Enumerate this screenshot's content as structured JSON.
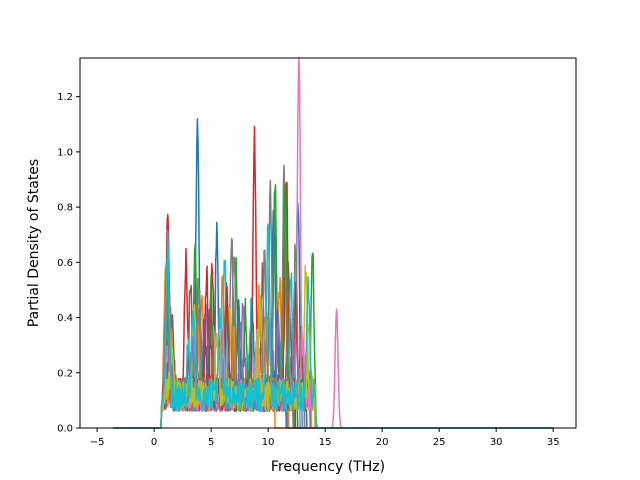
{
  "chart_data": {
    "type": "line",
    "title": "",
    "xlabel": "Frequency (THz)",
    "ylabel": "Partial Density of States",
    "xlim": [
      -6.5,
      37
    ],
    "ylim": [
      0,
      1.34
    ],
    "xticks": [
      -5,
      0,
      5,
      10,
      15,
      20,
      25,
      30,
      35
    ],
    "yticks": [
      0.0,
      0.2,
      0.4,
      0.6,
      0.8,
      1.0,
      1.2
    ],
    "xtick_labels": [
      "−5",
      "0",
      "5",
      "10",
      "15",
      "20",
      "25",
      "30",
      "35"
    ],
    "ytick_labels": [
      "0.0",
      "0.2",
      "0.4",
      "0.6",
      "0.8",
      "1.0",
      "1.2"
    ],
    "grid": false,
    "legend": "none",
    "x_range_of_data": [
      -3.6,
      35
    ],
    "series_count": 20,
    "series": [
      {
        "color": "#1f77b4",
        "peaks": [
          [
            1.2,
            0.62
          ],
          [
            3.8,
            1.0
          ],
          [
            5.5,
            0.58
          ],
          [
            10.5,
            0.7
          ],
          [
            12.6,
            0.75
          ]
        ]
      },
      {
        "color": "#ff7f0e",
        "peaks": [
          [
            1.0,
            0.45
          ],
          [
            4.2,
            0.38
          ],
          [
            6.0,
            0.42
          ],
          [
            9.2,
            0.36
          ],
          [
            11.0,
            0.4
          ]
        ]
      },
      {
        "color": "#2ca02c",
        "peaks": [
          [
            1.3,
            0.35
          ],
          [
            3.6,
            0.5
          ],
          [
            7.2,
            0.44
          ],
          [
            10.6,
            0.76
          ],
          [
            13.9,
            0.51
          ]
        ]
      },
      {
        "color": "#d62728",
        "peaks": [
          [
            1.2,
            0.68
          ],
          [
            2.8,
            0.5
          ],
          [
            5.1,
            0.48
          ],
          [
            8.8,
            0.97
          ],
          [
            11.6,
            0.8
          ]
        ]
      },
      {
        "color": "#9467bd",
        "peaks": [
          [
            1.5,
            0.3
          ],
          [
            4.5,
            0.34
          ],
          [
            7.8,
            0.3
          ],
          [
            10.2,
            0.3
          ],
          [
            12.2,
            0.32
          ]
        ]
      },
      {
        "color": "#8c564b",
        "peaks": [
          [
            1.6,
            0.28
          ],
          [
            3.2,
            0.42
          ],
          [
            6.3,
            0.38
          ],
          [
            9.5,
            0.42
          ],
          [
            11.8,
            0.48
          ]
        ]
      },
      {
        "color": "#e377c2",
        "peaks": [
          [
            1.1,
            0.2
          ],
          [
            5.2,
            0.3
          ],
          [
            12.7,
            1.28
          ],
          [
            16.0,
            0.43
          ]
        ]
      },
      {
        "color": "#7f7f7f",
        "peaks": [
          [
            1.4,
            0.3
          ],
          [
            4.0,
            0.36
          ],
          [
            6.8,
            0.58
          ],
          [
            10.2,
            0.72
          ],
          [
            11.4,
            0.81
          ]
        ]
      },
      {
        "color": "#bcbd22",
        "peaks": [
          [
            1.2,
            0.26
          ],
          [
            3.5,
            0.3
          ],
          [
            6.6,
            0.32
          ],
          [
            9.3,
            0.34
          ],
          [
            13.3,
            0.45
          ]
        ]
      },
      {
        "color": "#17becf",
        "peaks": [
          [
            1.0,
            0.28
          ],
          [
            3.0,
            0.2
          ],
          [
            6.2,
            0.47
          ],
          [
            8.5,
            0.3
          ],
          [
            12.0,
            0.42
          ]
        ]
      },
      {
        "color": "#1f77b4",
        "peaks": [
          [
            1.3,
            0.22
          ],
          [
            4.4,
            0.25
          ],
          [
            7.4,
            0.3
          ],
          [
            10.8,
            0.3
          ]
        ]
      },
      {
        "color": "#ff7f0e",
        "peaks": [
          [
            1.5,
            0.2
          ],
          [
            3.8,
            0.28
          ],
          [
            7.0,
            0.24
          ],
          [
            9.8,
            0.3
          ]
        ]
      },
      {
        "color": "#2ca02c",
        "peaks": [
          [
            1.2,
            0.3
          ],
          [
            5.0,
            0.4
          ],
          [
            8.0,
            0.3
          ],
          [
            11.5,
            0.76
          ]
        ]
      },
      {
        "color": "#d62728",
        "peaks": [
          [
            1.1,
            0.4
          ],
          [
            4.6,
            0.45
          ],
          [
            6.4,
            0.36
          ],
          [
            12.4,
            0.35
          ]
        ]
      },
      {
        "color": "#9467bd",
        "peaks": [
          [
            1.4,
            0.18
          ],
          [
            3.3,
            0.22
          ],
          [
            7.6,
            0.22
          ],
          [
            10.9,
            0.26
          ]
        ]
      },
      {
        "color": "#8c564b",
        "peaks": [
          [
            1.3,
            0.2
          ],
          [
            4.9,
            0.3
          ],
          [
            8.6,
            0.3
          ],
          [
            12.9,
            0.2
          ]
        ]
      },
      {
        "color": "#e377c2",
        "peaks": [
          [
            1.2,
            0.16
          ],
          [
            6.0,
            0.2
          ],
          [
            9.0,
            0.2
          ],
          [
            13.0,
            0.2
          ]
        ]
      },
      {
        "color": "#7f7f7f",
        "peaks": [
          [
            1.1,
            0.44
          ],
          [
            3.9,
            0.4
          ],
          [
            7.0,
            0.5
          ],
          [
            9.7,
            0.5
          ],
          [
            12.4,
            0.56
          ]
        ]
      },
      {
        "color": "#bcbd22",
        "peaks": [
          [
            1.5,
            0.16
          ],
          [
            5.5,
            0.22
          ],
          [
            9.1,
            0.2
          ],
          [
            13.6,
            0.3
          ]
        ]
      },
      {
        "color": "#17becf",
        "peaks": [
          [
            1.2,
            0.55
          ],
          [
            3.4,
            0.3
          ],
          [
            5.8,
            0.28
          ],
          [
            10.0,
            0.62
          ],
          [
            13.5,
            0.42
          ]
        ]
      }
    ]
  }
}
